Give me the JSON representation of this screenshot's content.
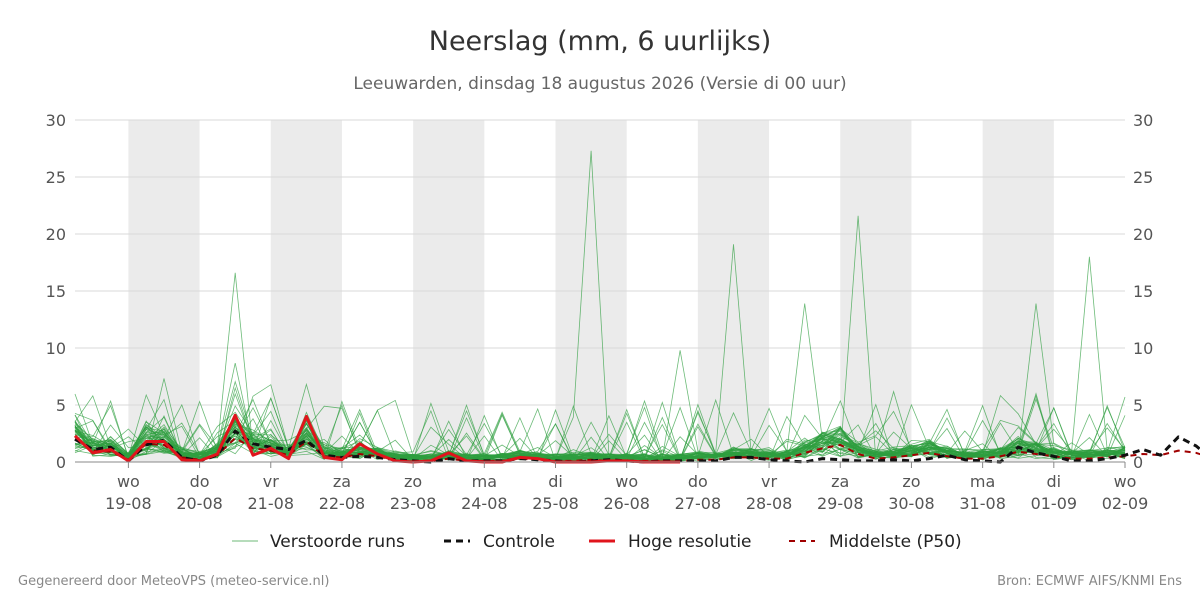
{
  "colors": {
    "ensemble": "#2e9e3e",
    "control": "#111111",
    "high_res": "#e0141c",
    "median": "#a00000",
    "weekend_band": "#ebebeb",
    "grid": "#d9d9d9"
  },
  "chart_data": {
    "type": "line",
    "title": "Neerslag (mm, 6 uurlijks)",
    "subtitle": "Leeuwarden, dinsdag 18 augustus 2026 (Versie di 00 uur)",
    "ylim": [
      0,
      30
    ],
    "y_ticks": [
      0,
      5,
      10,
      15,
      20,
      25,
      30
    ],
    "x_start": "2026-08-18T06:00",
    "x_end": "2026-09-02T00:00",
    "x_step_hours": 6,
    "grid": true,
    "legend_position": "bottom",
    "x_ticks": [
      {
        "day": "wo",
        "date": "19-08"
      },
      {
        "day": "do",
        "date": "20-08"
      },
      {
        "day": "vr",
        "date": "21-08"
      },
      {
        "day": "za",
        "date": "22-08"
      },
      {
        "day": "zo",
        "date": "23-08"
      },
      {
        "day": "ma",
        "date": "24-08"
      },
      {
        "day": "di",
        "date": "25-08"
      },
      {
        "day": "wo",
        "date": "26-08"
      },
      {
        "day": "do",
        "date": "27-08"
      },
      {
        "day": "vr",
        "date": "28-08"
      },
      {
        "day": "za",
        "date": "29-08"
      },
      {
        "day": "zo",
        "date": "30-08"
      },
      {
        "day": "ma",
        "date": "31-08"
      },
      {
        "day": "di",
        "date": "01-09"
      },
      {
        "day": "wo",
        "date": "02-09"
      }
    ],
    "shaded_days": [
      "19-08",
      "21-08",
      "23-08",
      "25-08",
      "27-08",
      "29-08",
      "31-08"
    ],
    "ensemble_member_count": 50,
    "ensemble_peaks": [
      {
        "x": "2026-08-20T12:00",
        "y": 16.6
      },
      {
        "x": "2026-08-25T12:00",
        "y": 27.3
      },
      {
        "x": "2026-08-26T18:00",
        "y": 9.8
      },
      {
        "x": "2026-08-27T12:00",
        "y": 19.1
      },
      {
        "x": "2026-08-28T12:00",
        "y": 13.9
      },
      {
        "x": "2026-08-29T06:00",
        "y": 21.6
      },
      {
        "x": "2026-08-31T18:00",
        "y": 13.9
      },
      {
        "x": "2026-09-01T12:00",
        "y": 18.0
      }
    ],
    "series": [
      {
        "name": "Hoge resolutie",
        "style": "high_res",
        "values": [
          2.3,
          0.8,
          1.1,
          0.1,
          1.8,
          1.8,
          0.2,
          0.1,
          0.7,
          4.1,
          0.6,
          1.2,
          0.3,
          4.0,
          0.4,
          0.2,
          1.6,
          0.7,
          0.1,
          0.0,
          0.1,
          0.8,
          0.1,
          0.0,
          0.0,
          0.4,
          0.3,
          0.0,
          0.0,
          0.0,
          0.1,
          0.1,
          0.0,
          0.0,
          0.0
        ]
      },
      {
        "name": "Controle",
        "style": "control",
        "values": [
          2.0,
          1.1,
          1.3,
          0.1,
          1.5,
          1.9,
          0.4,
          0.1,
          0.6,
          2.7,
          1.6,
          1.3,
          1.1,
          1.9,
          0.6,
          0.4,
          0.5,
          0.4,
          0.2,
          0.1,
          0.0,
          0.3,
          0.1,
          0.1,
          0.1,
          0.3,
          0.2,
          0.1,
          0.0,
          0.1,
          0.2,
          0.1,
          0.0,
          0.1,
          0.1,
          0.1,
          0.1,
          0.4,
          0.4,
          0.2,
          0.1,
          0.0,
          0.3,
          0.2,
          0.1,
          0.1,
          0.2,
          0.1,
          0.3,
          0.6,
          0.2,
          0.1,
          0.0,
          1.3,
          0.8,
          0.5,
          0.1,
          0.1,
          0.3,
          0.6,
          1.1,
          0.6,
          2.2,
          1.4,
          0.1
        ]
      },
      {
        "name": "Middelste (P50)",
        "style": "median",
        "values": [
          2.0,
          1.0,
          0.9,
          0.2,
          1.6,
          1.5,
          0.4,
          0.2,
          0.6,
          2.1,
          1.2,
          1.0,
          0.6,
          1.8,
          0.5,
          0.4,
          0.7,
          0.5,
          0.2,
          0.1,
          0.1,
          0.3,
          0.1,
          0.1,
          0.1,
          0.3,
          0.2,
          0.1,
          0.1,
          0.2,
          0.1,
          0.1,
          0.1,
          0.1,
          0.1,
          0.2,
          0.2,
          0.4,
          0.4,
          0.3,
          0.3,
          0.8,
          1.2,
          1.5,
          0.7,
          0.3,
          0.4,
          0.6,
          0.8,
          0.5,
          0.3,
          0.3,
          0.5,
          0.9,
          0.7,
          0.5,
          0.3,
          0.3,
          0.4,
          0.5,
          0.7,
          0.6,
          1.0,
          0.8,
          0.3
        ]
      }
    ]
  },
  "legend": [
    {
      "label": "Verstoorde runs",
      "style": "ensemble"
    },
    {
      "label": "Controle",
      "style": "control"
    },
    {
      "label": "Hoge resolutie",
      "style": "high_res"
    },
    {
      "label": "Middelste (P50)",
      "style": "median"
    }
  ],
  "footer": {
    "left": "Gegenereerd door MeteoVPS (meteo-service.nl)",
    "right": "Bron: ECMWF AIFS/KNMI Ens"
  }
}
